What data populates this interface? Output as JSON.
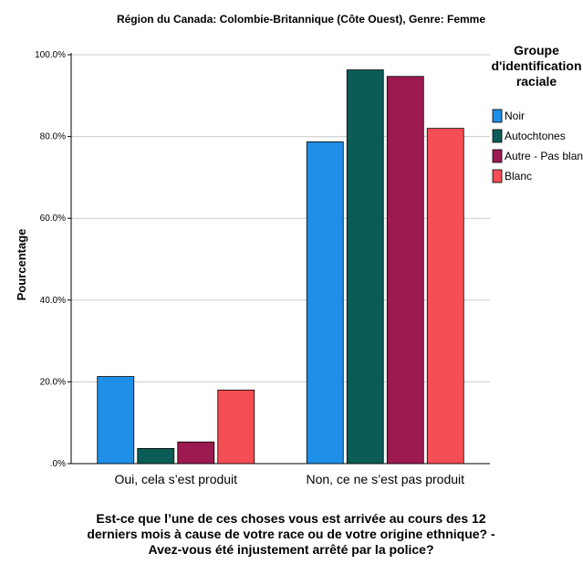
{
  "chart_data": {
    "type": "bar",
    "title": "Région du Canada: Colombie-Britannique (Côte Ouest), Genre: Femme",
    "ylabel": "Pourcentage",
    "xlabel_lines": [
      "Est-ce que l’une de ces choses vous est arrivée au cours des 12",
      "derniers mois à cause de votre race ou de votre origine ethnique? -",
      "Avez-vous été injustement arrêté par la police?"
    ],
    "categories": [
      "Oui, cela s’est produit",
      "Non, ce ne s’est pas produit"
    ],
    "series": [
      {
        "name": "Noir",
        "color": "#1f8ee6",
        "values": [
          21.3,
          78.7
        ]
      },
      {
        "name": "Autochtones",
        "color": "#0b5c57",
        "values": [
          3.7,
          96.3
        ]
      },
      {
        "name": "Autre - Pas blanc",
        "color": "#9c1a4f",
        "values": [
          5.3,
          94.7
        ]
      },
      {
        "name": "Blanc",
        "color": "#f54e54",
        "values": [
          18.0,
          82.0
        ]
      }
    ],
    "ylim": [
      0,
      100
    ],
    "yticks": [
      0,
      20,
      40,
      60,
      80,
      100
    ],
    "ytick_labels": [
      ".0%",
      "20.0%",
      "40.0%",
      "60.0%",
      "80.0%",
      "100.0%"
    ],
    "grid": true,
    "legend": {
      "title_lines": [
        "Groupe",
        "d'identification",
        "raciale"
      ],
      "placement": "right"
    }
  }
}
